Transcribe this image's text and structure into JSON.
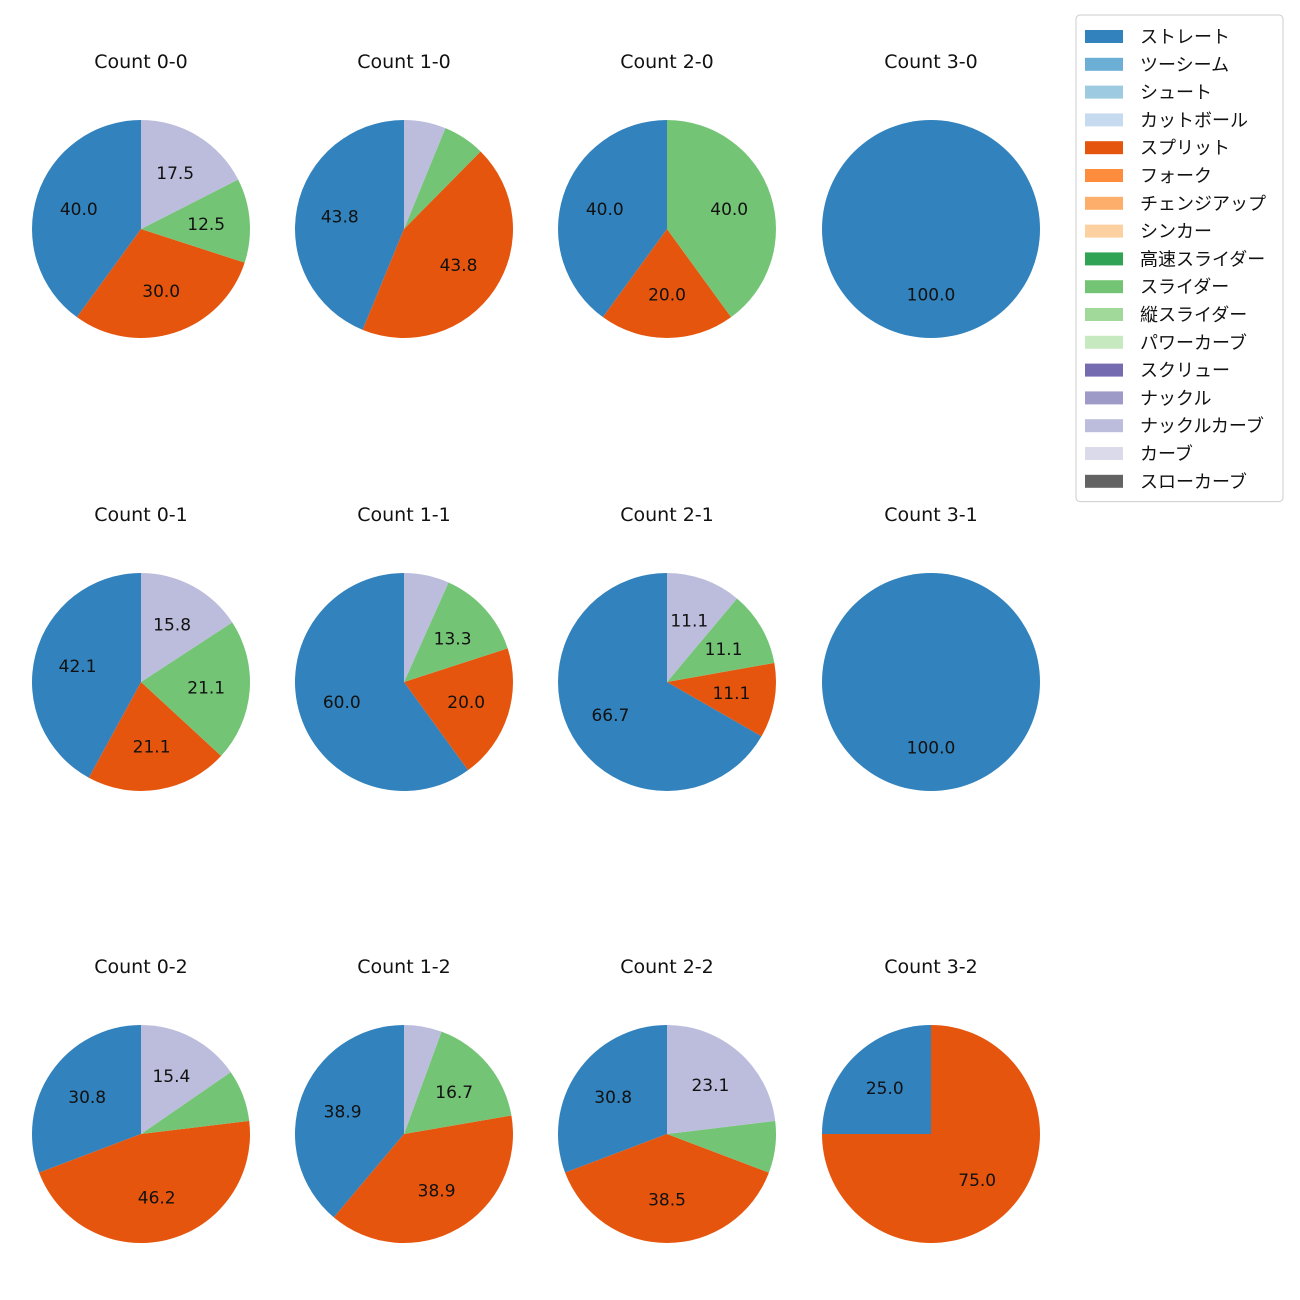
{
  "chart_data": {
    "type": "pie",
    "legend": {
      "placement": "top-right",
      "entries": [
        {
          "name": "ストレート",
          "color": "#3182bd"
        },
        {
          "name": "ツーシーム",
          "color": "#6baed6"
        },
        {
          "name": "シュート",
          "color": "#9ecae1"
        },
        {
          "name": "カットボール",
          "color": "#c6dbef"
        },
        {
          "name": "スプリット",
          "color": "#e6550d"
        },
        {
          "name": "フォーク",
          "color": "#fd8d3c"
        },
        {
          "name": "チェンジアップ",
          "color": "#fdae6b"
        },
        {
          "name": "シンカー",
          "color": "#fdd0a2"
        },
        {
          "name": "高速スライダー",
          "color": "#31a354"
        },
        {
          "name": "スライダー",
          "color": "#74c476"
        },
        {
          "name": "縦スライダー",
          "color": "#a1d99b"
        },
        {
          "name": "パワーカーブ",
          "color": "#c7e9c0"
        },
        {
          "name": "スクリュー",
          "color": "#756bb1"
        },
        {
          "name": "ナックル",
          "color": "#9e9ac8"
        },
        {
          "name": "ナックルカーブ",
          "color": "#bcbddc"
        },
        {
          "name": "カーブ",
          "color": "#dadaeb"
        },
        {
          "name": "スローカーブ",
          "color": "#636363"
        }
      ]
    },
    "pies": [
      {
        "title": "Count 0-0",
        "slices": [
          {
            "pitch": "ストレート",
            "value": 40.0,
            "label": "40.0"
          },
          {
            "pitch": "スプリット",
            "value": 30.0,
            "label": "30.0"
          },
          {
            "pitch": "スライダー",
            "value": 12.5,
            "label": "12.5"
          },
          {
            "pitch": "ナックルカーブ",
            "value": 17.5,
            "label": "17.5"
          }
        ]
      },
      {
        "title": "Count 1-0",
        "slices": [
          {
            "pitch": "ストレート",
            "value": 43.8,
            "label": "43.8"
          },
          {
            "pitch": "スプリット",
            "value": 43.8,
            "label": "43.8"
          },
          {
            "pitch": "スライダー",
            "value": 6.2,
            "label": ""
          },
          {
            "pitch": "ナックルカーブ",
            "value": 6.2,
            "label": ""
          }
        ]
      },
      {
        "title": "Count 2-0",
        "slices": [
          {
            "pitch": "ストレート",
            "value": 40.0,
            "label": "40.0"
          },
          {
            "pitch": "スプリット",
            "value": 20.0,
            "label": "20.0"
          },
          {
            "pitch": "スライダー",
            "value": 40.0,
            "label": "40.0"
          }
        ]
      },
      {
        "title": "Count 3-0",
        "slices": [
          {
            "pitch": "ストレート",
            "value": 100.0,
            "label": "100.0"
          }
        ]
      },
      {
        "title": "Count 0-1",
        "slices": [
          {
            "pitch": "ストレート",
            "value": 42.1,
            "label": "42.1"
          },
          {
            "pitch": "スプリット",
            "value": 21.1,
            "label": "21.1"
          },
          {
            "pitch": "スライダー",
            "value": 21.1,
            "label": "21.1"
          },
          {
            "pitch": "ナックルカーブ",
            "value": 15.8,
            "label": "15.8"
          }
        ]
      },
      {
        "title": "Count 1-1",
        "slices": [
          {
            "pitch": "ストレート",
            "value": 60.0,
            "label": "60.0"
          },
          {
            "pitch": "スプリット",
            "value": 20.0,
            "label": "20.0"
          },
          {
            "pitch": "スライダー",
            "value": 13.3,
            "label": "13.3"
          },
          {
            "pitch": "ナックルカーブ",
            "value": 6.7,
            "label": ""
          }
        ]
      },
      {
        "title": "Count 2-1",
        "slices": [
          {
            "pitch": "ストレート",
            "value": 66.7,
            "label": "66.7"
          },
          {
            "pitch": "スプリット",
            "value": 11.1,
            "label": "11.1"
          },
          {
            "pitch": "スライダー",
            "value": 11.1,
            "label": "11.1"
          },
          {
            "pitch": "ナックルカーブ",
            "value": 11.1,
            "label": "11.1"
          }
        ]
      },
      {
        "title": "Count 3-1",
        "slices": [
          {
            "pitch": "ストレート",
            "value": 100.0,
            "label": "100.0"
          }
        ]
      },
      {
        "title": "Count 0-2",
        "slices": [
          {
            "pitch": "ストレート",
            "value": 30.8,
            "label": "30.8"
          },
          {
            "pitch": "スプリット",
            "value": 46.2,
            "label": "46.2"
          },
          {
            "pitch": "スライダー",
            "value": 7.7,
            "label": ""
          },
          {
            "pitch": "ナックルカーブ",
            "value": 15.4,
            "label": "15.4"
          }
        ]
      },
      {
        "title": "Count 1-2",
        "slices": [
          {
            "pitch": "ストレート",
            "value": 38.9,
            "label": "38.9"
          },
          {
            "pitch": "スプリット",
            "value": 38.9,
            "label": "38.9"
          },
          {
            "pitch": "スライダー",
            "value": 16.7,
            "label": "16.7"
          },
          {
            "pitch": "ナックルカーブ",
            "value": 5.6,
            "label": ""
          }
        ]
      },
      {
        "title": "Count 2-2",
        "slices": [
          {
            "pitch": "ストレート",
            "value": 30.8,
            "label": "30.8"
          },
          {
            "pitch": "スプリット",
            "value": 38.5,
            "label": "38.5"
          },
          {
            "pitch": "スライダー",
            "value": 7.7,
            "label": ""
          },
          {
            "pitch": "ナックルカーブ",
            "value": 23.1,
            "label": "23.1"
          }
        ]
      },
      {
        "title": "Count 3-2",
        "slices": [
          {
            "pitch": "ストレート",
            "value": 25.0,
            "label": "25.0"
          },
          {
            "pitch": "スプリット",
            "value": 75.0,
            "label": "75.0"
          }
        ]
      }
    ]
  }
}
